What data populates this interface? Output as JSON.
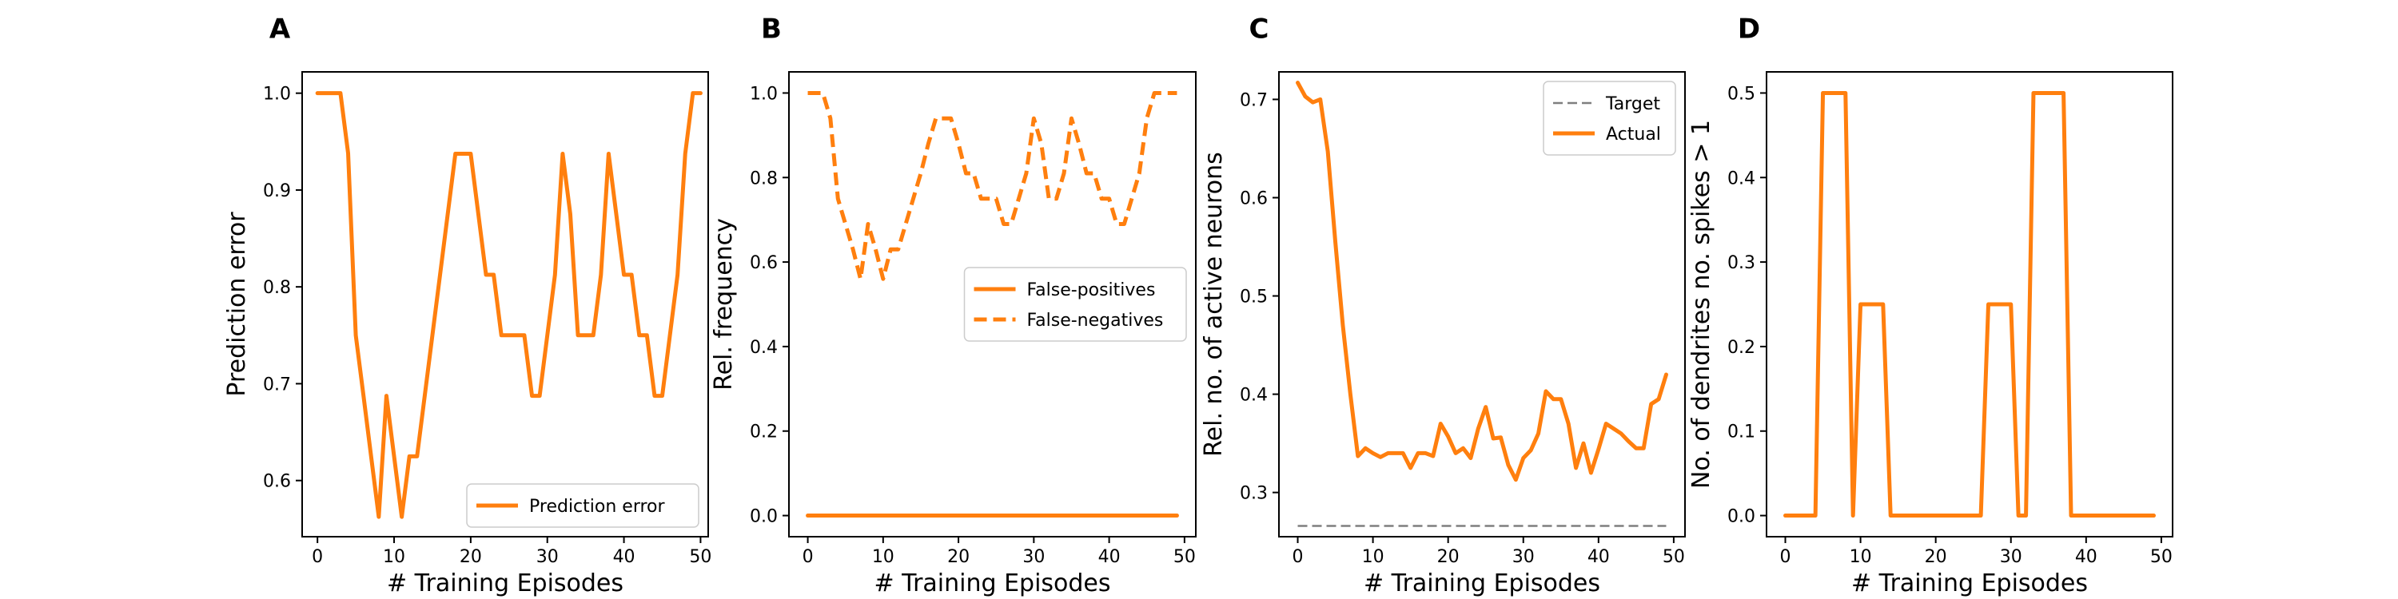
{
  "colors": {
    "orange": "#ff7f0e",
    "gray": "#7f7f7f"
  },
  "chart_data": [
    {
      "panel": "A",
      "type": "line",
      "xlabel": "# Training Episodes",
      "ylabel": "Prediction error",
      "xlim": [
        -2,
        51
      ],
      "ylim": [
        0.542,
        1.022
      ],
      "xticks": [
        0,
        10,
        20,
        30,
        40,
        50
      ],
      "yticks": [
        0.6,
        0.7,
        0.8,
        0.9,
        1.0
      ],
      "ytick_labels": [
        "0.6",
        "0.7",
        "0.8",
        "0.9",
        "1.0"
      ],
      "legend": {
        "loc": "lower-right"
      },
      "series": [
        {
          "name": "Prediction error",
          "style": "solid",
          "color": "#ff7f0e",
          "x": [
            0,
            1,
            2,
            3,
            4,
            5,
            6,
            7,
            8,
            9,
            10,
            11,
            12,
            13,
            14,
            15,
            16,
            17,
            18,
            19,
            20,
            21,
            22,
            23,
            24,
            25,
            26,
            27,
            28,
            29,
            30,
            31,
            32,
            33,
            34,
            35,
            36,
            37,
            38,
            39,
            40,
            41,
            42,
            43,
            44,
            45,
            46,
            47,
            48,
            49,
            50
          ],
          "y": [
            1.0,
            1.0,
            1.0,
            1.0,
            0.938,
            0.75,
            0.688,
            0.625,
            0.5625,
            0.6875,
            0.625,
            0.5625,
            0.625,
            0.625,
            0.6875,
            0.75,
            0.8125,
            0.875,
            0.9375,
            0.9375,
            0.9375,
            0.875,
            0.8125,
            0.8125,
            0.75,
            0.75,
            0.75,
            0.75,
            0.6875,
            0.6875,
            0.75,
            0.8125,
            0.9375,
            0.875,
            0.75,
            0.75,
            0.75,
            0.8125,
            0.9375,
            0.875,
            0.8125,
            0.8125,
            0.75,
            0.75,
            0.6875,
            0.6875,
            0.75,
            0.8125,
            0.9375,
            1.0,
            1.0
          ]
        }
      ]
    },
    {
      "panel": "B",
      "type": "line",
      "xlabel": "# Training Episodes",
      "ylabel": "Rel. frequency",
      "xlim": [
        -2.5,
        51.5
      ],
      "ylim": [
        -0.05,
        1.05
      ],
      "xticks": [
        0,
        10,
        20,
        30,
        40,
        50
      ],
      "yticks": [
        0.0,
        0.2,
        0.4,
        0.6,
        0.8,
        1.0
      ],
      "ytick_labels": [
        "0.0",
        "0.2",
        "0.4",
        "0.6",
        "0.8",
        "1.0"
      ],
      "legend": {
        "loc": "center-right"
      },
      "series": [
        {
          "name": "False-positives",
          "style": "solid",
          "color": "#ff7f0e",
          "x": [
            0,
            49
          ],
          "y": [
            0.0,
            0.0
          ]
        },
        {
          "name": "False-negatives",
          "style": "dashed",
          "color": "#ff7f0e",
          "x": [
            0,
            1,
            2,
            3,
            4,
            5,
            6,
            7,
            8,
            9,
            10,
            11,
            12,
            13,
            14,
            15,
            16,
            17,
            18,
            19,
            20,
            21,
            22,
            23,
            24,
            25,
            26,
            27,
            28,
            29,
            30,
            31,
            32,
            33,
            34,
            35,
            36,
            37,
            38,
            39,
            40,
            41,
            42,
            43,
            44,
            45,
            46,
            47,
            48,
            49
          ],
          "y": [
            1.0,
            1.0,
            1.0,
            0.94,
            0.75,
            0.69,
            0.63,
            0.56,
            0.69,
            0.63,
            0.56,
            0.63,
            0.63,
            0.69,
            0.75,
            0.81,
            0.88,
            0.94,
            0.94,
            0.94,
            0.88,
            0.81,
            0.81,
            0.75,
            0.75,
            0.75,
            0.69,
            0.69,
            0.75,
            0.81,
            0.94,
            0.88,
            0.75,
            0.75,
            0.81,
            0.94,
            0.88,
            0.81,
            0.81,
            0.75,
            0.75,
            0.69,
            0.69,
            0.75,
            0.81,
            0.94,
            1.0,
            1.0,
            1.0,
            1.0
          ]
        }
      ]
    },
    {
      "panel": "C",
      "type": "line",
      "xlabel": "# Training Episodes",
      "ylabel": "Rel. no. of active neurons",
      "xlim": [
        -2.5,
        51.5
      ],
      "ylim": [
        0.255,
        0.728
      ],
      "xticks": [
        0,
        10,
        20,
        30,
        40,
        50
      ],
      "yticks": [
        0.3,
        0.4,
        0.5,
        0.6,
        0.7
      ],
      "ytick_labels": [
        "0.3",
        "0.4",
        "0.5",
        "0.6",
        "0.7"
      ],
      "legend": {
        "loc": "upper-right"
      },
      "series": [
        {
          "name": "Target",
          "style": "dashed",
          "color": "#7f7f7f",
          "x": [
            0,
            49
          ],
          "y": [
            0.266,
            0.266
          ]
        },
        {
          "name": "Actual",
          "style": "solid",
          "color": "#ff7f0e",
          "x": [
            0,
            1,
            2,
            3,
            4,
            5,
            6,
            7,
            8,
            9,
            10,
            11,
            12,
            13,
            14,
            15,
            16,
            17,
            18,
            19,
            20,
            21,
            22,
            23,
            24,
            25,
            26,
            27,
            28,
            29,
            30,
            31,
            32,
            33,
            34,
            35,
            36,
            37,
            38,
            39,
            40,
            41,
            42,
            43,
            44,
            45,
            46,
            47,
            48,
            49
          ],
          "y": [
            0.717,
            0.703,
            0.697,
            0.7,
            0.647,
            0.555,
            0.47,
            0.4,
            0.337,
            0.345,
            0.34,
            0.336,
            0.34,
            0.34,
            0.34,
            0.325,
            0.34,
            0.34,
            0.337,
            0.37,
            0.357,
            0.34,
            0.345,
            0.335,
            0.365,
            0.387,
            0.355,
            0.356,
            0.328,
            0.313,
            0.335,
            0.343,
            0.36,
            0.403,
            0.395,
            0.395,
            0.37,
            0.325,
            0.35,
            0.32,
            0.344,
            0.37,
            0.365,
            0.36,
            0.352,
            0.345,
            0.345,
            0.39,
            0.395,
            0.42
          ]
        }
      ]
    },
    {
      "panel": "D",
      "type": "line",
      "xlabel": "# Training Episodes",
      "ylabel": "No. of dendrites no. spikes > 1",
      "xlim": [
        -2.5,
        51.5
      ],
      "ylim": [
        -0.025,
        0.525
      ],
      "xticks": [
        0,
        10,
        20,
        30,
        40,
        50
      ],
      "yticks": [
        0.0,
        0.1,
        0.2,
        0.3,
        0.4,
        0.5
      ],
      "ytick_labels": [
        "0.0",
        "0.1",
        "0.2",
        "0.3",
        "0.4",
        "0.5"
      ],
      "legend": null,
      "series": [
        {
          "name": "",
          "style": "solid",
          "color": "#ff7f0e",
          "x": [
            0,
            4,
            5,
            8,
            9,
            10,
            13,
            14,
            26,
            27,
            30,
            31,
            32,
            33,
            34,
            35,
            37,
            38,
            49
          ],
          "y": [
            0.0,
            0.0,
            0.5,
            0.5,
            0.0,
            0.25,
            0.25,
            0.0,
            0.0,
            0.25,
            0.25,
            0.0,
            0.0,
            0.5,
            0.5,
            0.5,
            0.5,
            0.0,
            0.0
          ]
        }
      ]
    }
  ]
}
